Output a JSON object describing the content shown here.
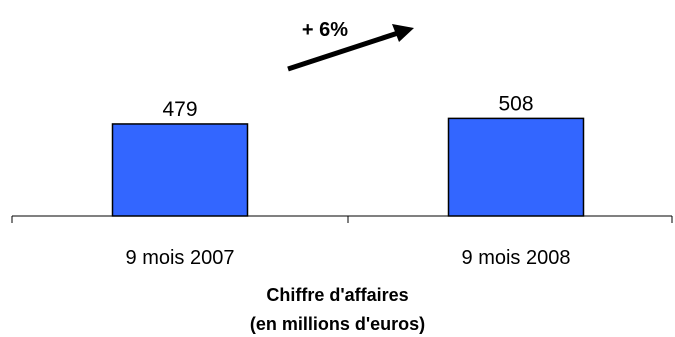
{
  "chart_data": {
    "type": "bar",
    "categories": [
      "9 mois 2007",
      "9 mois 2008"
    ],
    "values": [
      479,
      508
    ],
    "data_labels": [
      "479",
      "508"
    ],
    "ylim": [
      0,
      510
    ],
    "bar_color": "#3366FF",
    "grid": false,
    "legend": "none",
    "annotation": "+ 6%",
    "xlabel_lines": [
      "Chiffre d'affaires",
      "(en millions d'euros)"
    ]
  }
}
